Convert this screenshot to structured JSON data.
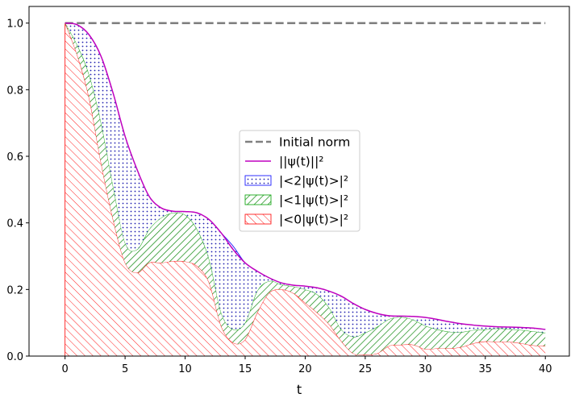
{
  "chart_data": {
    "type": "area",
    "title": "",
    "xlabel": "t",
    "ylabel": "",
    "xlim": [
      -3,
      42
    ],
    "ylim": [
      0,
      1.05
    ],
    "xticks": [
      0,
      5,
      10,
      15,
      20,
      25,
      30,
      35,
      40
    ],
    "yticks": [
      0.0,
      0.2,
      0.4,
      0.6,
      0.8,
      1.0
    ],
    "xtick_labels": [
      "0",
      "5",
      "10",
      "15",
      "20",
      "25",
      "30",
      "35",
      "40"
    ],
    "ytick_labels": [
      "0.0",
      "0.2",
      "0.4",
      "0.6",
      "0.8",
      "1.0"
    ],
    "grid": false,
    "legend_position": "center",
    "x": [
      0,
      1,
      2,
      3,
      4,
      5,
      6,
      7,
      8,
      9,
      10,
      11,
      12,
      13,
      14,
      15,
      16,
      17,
      18,
      19,
      20,
      21,
      22,
      23,
      24,
      25,
      26,
      27,
      28,
      29,
      30,
      31,
      32,
      33,
      34,
      35,
      36,
      37,
      38,
      39,
      40
    ],
    "series": [
      {
        "name": "Initial norm",
        "kind": "line",
        "color": "#808080",
        "style": "dashed",
        "values": [
          1,
          1,
          1,
          1,
          1,
          1,
          1,
          1,
          1,
          1,
          1,
          1,
          1,
          1,
          1,
          1,
          1,
          1,
          1,
          1,
          1,
          1,
          1,
          1,
          1,
          1,
          1,
          1,
          1,
          1,
          1,
          1,
          1,
          1,
          1,
          1,
          1,
          1,
          1,
          1,
          1
        ]
      },
      {
        "name": "||ψ(t)||²",
        "kind": "line",
        "color": "#bf00bf",
        "values": [
          1.0,
          0.995,
          0.965,
          0.9,
          0.79,
          0.66,
          0.56,
          0.48,
          0.445,
          0.435,
          0.434,
          0.43,
          0.41,
          0.37,
          0.32,
          0.28,
          0.255,
          0.235,
          0.22,
          0.213,
          0.21,
          0.205,
          0.195,
          0.18,
          0.158,
          0.14,
          0.128,
          0.121,
          0.12,
          0.119,
          0.116,
          0.11,
          0.103,
          0.097,
          0.093,
          0.09,
          0.088,
          0.087,
          0.086,
          0.084,
          0.08
        ]
      },
      {
        "name": "|<2|ψ(t)>|²",
        "kind": "stacked-area",
        "color": "#0000ff",
        "hatch": "dots",
        "values": [
          0.0,
          0.06,
          0.12,
          0.2,
          0.28,
          0.32,
          0.24,
          0.1,
          0.03,
          0.005,
          0.01,
          0.05,
          0.12,
          0.24,
          0.25,
          0.18,
          0.06,
          0.01,
          0.005,
          0.004,
          0.01,
          0.02,
          0.05,
          0.1,
          0.1,
          0.07,
          0.04,
          0.01,
          0.003,
          0.01,
          0.025,
          0.03,
          0.03,
          0.025,
          0.015,
          0.01,
          0.005,
          0.006,
          0.008,
          0.01,
          0.01
        ]
      },
      {
        "name": "|<1|ψ(t)>|²",
        "kind": "stacked-area",
        "color": "#00a000",
        "hatch": "diagonal-up",
        "values": [
          0.0,
          0.03,
          0.07,
          0.12,
          0.1,
          0.06,
          0.07,
          0.1,
          0.135,
          0.145,
          0.14,
          0.11,
          0.07,
          0.04,
          0.04,
          0.05,
          0.065,
          0.035,
          0.015,
          0.02,
          0.04,
          0.055,
          0.05,
          0.035,
          0.05,
          0.065,
          0.08,
          0.08,
          0.083,
          0.075,
          0.07,
          0.057,
          0.05,
          0.045,
          0.04,
          0.036,
          0.04,
          0.038,
          0.04,
          0.042,
          0.04
        ]
      },
      {
        "name": "|<0|ψ(t)>|²",
        "kind": "stacked-area",
        "color": "#ff0000",
        "hatch": "diagonal-down",
        "values": [
          1.0,
          0.905,
          0.775,
          0.58,
          0.41,
          0.28,
          0.25,
          0.28,
          0.28,
          0.285,
          0.284,
          0.27,
          0.22,
          0.09,
          0.04,
          0.05,
          0.13,
          0.19,
          0.2,
          0.189,
          0.16,
          0.13,
          0.095,
          0.045,
          0.008,
          0.005,
          0.008,
          0.031,
          0.034,
          0.034,
          0.021,
          0.023,
          0.023,
          0.027,
          0.038,
          0.044,
          0.043,
          0.043,
          0.038,
          0.032,
          0.03
        ]
      }
    ]
  }
}
